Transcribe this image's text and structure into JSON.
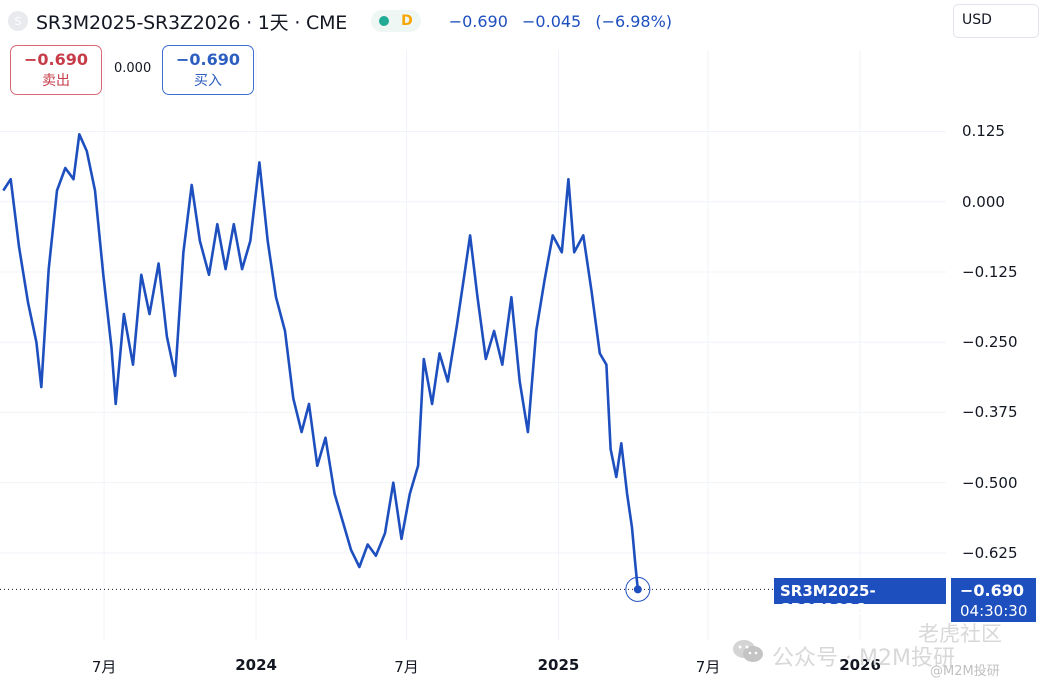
{
  "header": {
    "symbol_icon": "S",
    "title": "SR3M2025-SR3Z2026 · 1天 · CME",
    "status_letter": "D",
    "last": "−0.690",
    "change": "−0.045",
    "change_pct": "(−6.98%)"
  },
  "currency_button": "USD",
  "trade": {
    "sell_value": "−0.690",
    "sell_label": "卖出",
    "spread": "0.000",
    "buy_value": "−0.690",
    "buy_label": "买入"
  },
  "price_label": {
    "symbol": "SR3M2025-SR3Z2026",
    "value": "−0.690",
    "countdown": "04:30:30"
  },
  "watermark": {
    "text": "公众号 · M2M投研",
    "badge": "老虎社区",
    "badge_sub": "@M2M投研"
  },
  "colors": {
    "line": "#1e4fbf",
    "sell": "#c63d49",
    "buy": "#2c5fbf",
    "grid": "#f0f3fa"
  },
  "chart_data": {
    "type": "line",
    "series": [
      {
        "name": "SR3M2025-SR3Z2026",
        "points": [
          [
            "2023-03-01",
            0.02
          ],
          [
            "2023-03-10",
            0.04
          ],
          [
            "2023-03-20",
            -0.08
          ],
          [
            "2023-03-31",
            -0.18
          ],
          [
            "2023-04-10",
            -0.25
          ],
          [
            "2023-04-16",
            -0.33
          ],
          [
            "2023-04-25",
            -0.12
          ],
          [
            "2023-05-05",
            0.02
          ],
          [
            "2023-05-15",
            0.06
          ],
          [
            "2023-05-25",
            0.04
          ],
          [
            "2023-06-01",
            0.12
          ],
          [
            "2023-06-10",
            0.09
          ],
          [
            "2023-06-20",
            0.02
          ],
          [
            "2023-06-30",
            -0.13
          ],
          [
            "2023-07-10",
            -0.26
          ],
          [
            "2023-07-15",
            -0.36
          ],
          [
            "2023-07-25",
            -0.2
          ],
          [
            "2023-08-05",
            -0.29
          ],
          [
            "2023-08-15",
            -0.13
          ],
          [
            "2023-08-25",
            -0.2
          ],
          [
            "2023-09-05",
            -0.11
          ],
          [
            "2023-09-15",
            -0.24
          ],
          [
            "2023-09-25",
            -0.31
          ],
          [
            "2023-10-05",
            -0.09
          ],
          [
            "2023-10-15",
            0.03
          ],
          [
            "2023-10-25",
            -0.07
          ],
          [
            "2023-11-05",
            -0.13
          ],
          [
            "2023-11-15",
            -0.04
          ],
          [
            "2023-11-25",
            -0.12
          ],
          [
            "2023-12-05",
            -0.04
          ],
          [
            "2023-12-15",
            -0.12
          ],
          [
            "2023-12-25",
            -0.07
          ],
          [
            "2024-01-05",
            0.07
          ],
          [
            "2024-01-15",
            -0.07
          ],
          [
            "2024-01-25",
            -0.17
          ],
          [
            "2024-02-05",
            -0.23
          ],
          [
            "2024-02-15",
            -0.35
          ],
          [
            "2024-02-25",
            -0.41
          ],
          [
            "2024-03-05",
            -0.36
          ],
          [
            "2024-03-15",
            -0.47
          ],
          [
            "2024-03-25",
            -0.42
          ],
          [
            "2024-04-05",
            -0.52
          ],
          [
            "2024-04-15",
            -0.57
          ],
          [
            "2024-04-25",
            -0.62
          ],
          [
            "2024-05-05",
            -0.65
          ],
          [
            "2024-05-15",
            -0.61
          ],
          [
            "2024-05-25",
            -0.63
          ],
          [
            "2024-06-05",
            -0.59
          ],
          [
            "2024-06-15",
            -0.5
          ],
          [
            "2024-06-25",
            -0.6
          ],
          [
            "2024-07-05",
            -0.52
          ],
          [
            "2024-07-15",
            -0.47
          ],
          [
            "2024-07-22",
            -0.28
          ],
          [
            "2024-08-01",
            -0.36
          ],
          [
            "2024-08-10",
            -0.27
          ],
          [
            "2024-08-20",
            -0.32
          ],
          [
            "2024-08-31",
            -0.22
          ],
          [
            "2024-09-10",
            -0.12
          ],
          [
            "2024-09-16",
            -0.06
          ],
          [
            "2024-09-25",
            -0.17
          ],
          [
            "2024-10-05",
            -0.28
          ],
          [
            "2024-10-15",
            -0.23
          ],
          [
            "2024-10-25",
            -0.29
          ],
          [
            "2024-11-05",
            -0.17
          ],
          [
            "2024-11-15",
            -0.32
          ],
          [
            "2024-11-25",
            -0.41
          ],
          [
            "2024-12-05",
            -0.23
          ],
          [
            "2024-12-15",
            -0.14
          ],
          [
            "2024-12-25",
            -0.06
          ],
          [
            "2025-01-05",
            -0.09
          ],
          [
            "2025-01-13",
            0.04
          ],
          [
            "2025-01-20",
            -0.09
          ],
          [
            "2025-01-31",
            -0.06
          ],
          [
            "2025-02-10",
            -0.16
          ],
          [
            "2025-02-20",
            -0.27
          ],
          [
            "2025-02-28",
            -0.29
          ],
          [
            "2025-03-05",
            -0.44
          ],
          [
            "2025-03-12",
            -0.49
          ],
          [
            "2025-03-18",
            -0.43
          ],
          [
            "2025-03-25",
            -0.52
          ],
          [
            "2025-03-31",
            -0.58
          ],
          [
            "2025-04-04",
            -0.645
          ],
          [
            "2025-04-07",
            -0.69
          ]
        ]
      }
    ],
    "x_ticks": [
      "7月",
      "2024",
      "7月",
      "2025",
      "7月",
      "2026"
    ],
    "y_ticks": [
      0.125,
      0.0,
      -0.125,
      -0.25,
      -0.375,
      -0.5,
      -0.625
    ],
    "y_tick_labels": [
      "0.125",
      "0.000",
      "−0.125",
      "−0.250",
      "−0.375",
      "−0.500",
      "−0.625"
    ],
    "xlim": [
      "2023-02-25",
      "2026-04-15"
    ],
    "ylim": [
      -0.78,
      0.27
    ],
    "last_value": -0.69,
    "grid": true
  }
}
